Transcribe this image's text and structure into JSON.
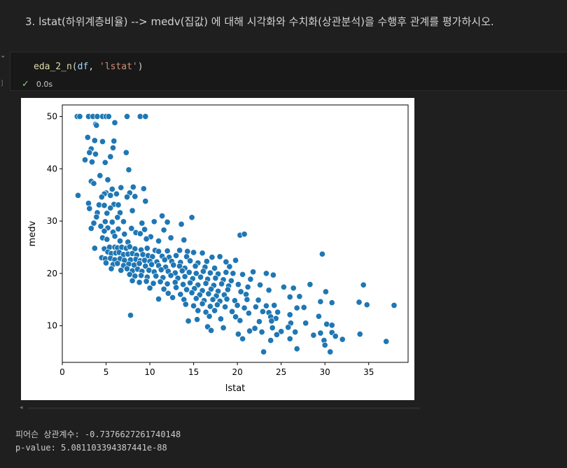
{
  "markdown": {
    "heading": "3. lstat(하위계층비율) --> medv(집값) 에 대해 시각화와 수치화(상관분석)을 수행후 관계를 평가하시오."
  },
  "code_cell": {
    "tokens": {
      "fn": "eda_2_n",
      "open": "(",
      "arg1": "df",
      "sep": ", ",
      "arg2": "'lstat'",
      "close": ")"
    },
    "exec_time": "0.0s",
    "exec_bracket": "]",
    "collapse_glyph": "⌄",
    "status_icon": "check-icon"
  },
  "output": {
    "stdout_lines": [
      "피어슨 상관계수: -0.7376627261740148",
      "p-value: 5.081103394387441e-88"
    ]
  },
  "chart_data": {
    "type": "scatter",
    "xlabel": "lstat",
    "ylabel": "medv",
    "xlim": [
      0,
      39.5
    ],
    "ylim": [
      3,
      52.2
    ],
    "xticks": [
      0,
      5,
      10,
      15,
      20,
      25,
      30,
      35
    ],
    "yticks": [
      10,
      20,
      30,
      40,
      50
    ],
    "grid": false,
    "marker_color": "#1f77b4",
    "points": [
      [
        1.7,
        50
      ],
      [
        2.0,
        50
      ],
      [
        3.0,
        50
      ],
      [
        3.5,
        50
      ],
      [
        4.0,
        50
      ],
      [
        4.6,
        50
      ],
      [
        5.0,
        50
      ],
      [
        5.3,
        50
      ],
      [
        7.4,
        50
      ],
      [
        8.9,
        50
      ],
      [
        9.5,
        50
      ],
      [
        6.0,
        48.8
      ],
      [
        3.8,
        48.5
      ],
      [
        3.9,
        48.3
      ],
      [
        2.9,
        46
      ],
      [
        3.7,
        45.4
      ],
      [
        4.6,
        45.2
      ],
      [
        5.9,
        45.3
      ],
      [
        5.8,
        44
      ],
      [
        3.3,
        43.8
      ],
      [
        3.1,
        43.1
      ],
      [
        7.3,
        43.1
      ],
      [
        3.8,
        42.8
      ],
      [
        5.5,
        42.3
      ],
      [
        2.6,
        41.7
      ],
      [
        3.4,
        41.3
      ],
      [
        4.9,
        41.2
      ],
      [
        7.6,
        39.8
      ],
      [
        1.8,
        34.9
      ],
      [
        4.3,
        38.7
      ],
      [
        5.2,
        37.9
      ],
      [
        3.3,
        37.6
      ],
      [
        3.6,
        37.2
      ],
      [
        6.7,
        36.4
      ],
      [
        8.1,
        36.5
      ],
      [
        9.3,
        36.2
      ],
      [
        5.7,
        36.1
      ],
      [
        5.0,
        35.4
      ],
      [
        4.8,
        35.2
      ],
      [
        6.2,
        35.2
      ],
      [
        5.5,
        34.9
      ],
      [
        7.7,
        35.4
      ],
      [
        7.4,
        34.6
      ],
      [
        8.3,
        34.7
      ],
      [
        4.5,
        34.6
      ],
      [
        3.0,
        33.4
      ],
      [
        5.9,
        33.2
      ],
      [
        4.2,
        33.1
      ],
      [
        6.4,
        33.1
      ],
      [
        4.8,
        33.0
      ],
      [
        3.1,
        32.4
      ],
      [
        9.5,
        33.8
      ],
      [
        5.5,
        32.5
      ],
      [
        4.0,
        31.6
      ],
      [
        5.1,
        31.5
      ],
      [
        6.6,
        31.6
      ],
      [
        8.0,
        32.0
      ],
      [
        3.9,
        30.8
      ],
      [
        6.3,
        30.7
      ],
      [
        11.4,
        31.0
      ],
      [
        14.8,
        30.7
      ],
      [
        4.9,
        29.9
      ],
      [
        5.7,
        29.8
      ],
      [
        7.0,
        29.9
      ],
      [
        9.1,
        29.6
      ],
      [
        10.5,
        29.9
      ],
      [
        3.6,
        29.6
      ],
      [
        12.0,
        29.8
      ],
      [
        13.6,
        29.4
      ],
      [
        4.4,
        29.0
      ],
      [
        5.2,
        28.7
      ],
      [
        6.4,
        28.5
      ],
      [
        7.9,
        28.6
      ],
      [
        9.4,
        28.4
      ],
      [
        3.3,
        28.6
      ],
      [
        4.8,
        28.1
      ],
      [
        11.6,
        28.3
      ],
      [
        5.8,
        27.9
      ],
      [
        8.4,
        27.8
      ],
      [
        20.3,
        27.3
      ],
      [
        20.8,
        27.5
      ],
      [
        6.0,
        27.1
      ],
      [
        7.1,
        27.5
      ],
      [
        8.9,
        27.6
      ],
      [
        10.1,
        27.0
      ],
      [
        4.6,
        26.8
      ],
      [
        12.4,
        26.8
      ],
      [
        13.9,
        26.4
      ],
      [
        5.1,
        26.5
      ],
      [
        6.6,
        26.2
      ],
      [
        9.6,
        26.6
      ],
      [
        7.5,
        26.0
      ],
      [
        11.0,
        26.2
      ],
      [
        3.7,
        24.8
      ],
      [
        4.8,
        24.7
      ],
      [
        5.4,
        25.0
      ],
      [
        6.0,
        25.0
      ],
      [
        6.3,
        24.9
      ],
      [
        6.8,
        25.0
      ],
      [
        7.3,
        24.8
      ],
      [
        7.7,
        25.1
      ],
      [
        8.3,
        24.7
      ],
      [
        9.0,
        24.5
      ],
      [
        9.7,
        24.8
      ],
      [
        10.6,
        24.4
      ],
      [
        11.0,
        24.2
      ],
      [
        12.0,
        24.3
      ],
      [
        13.4,
        24.4
      ],
      [
        14.3,
        24.2
      ],
      [
        15.0,
        24.0
      ],
      [
        16.0,
        23.9
      ],
      [
        5.2,
        24.1
      ],
      [
        5.6,
        23.8
      ],
      [
        6.1,
        23.9
      ],
      [
        6.5,
        24.0
      ],
      [
        7.0,
        23.6
      ],
      [
        7.5,
        23.7
      ],
      [
        8.0,
        23.8
      ],
      [
        8.5,
        23.5
      ],
      [
        9.2,
        23.6
      ],
      [
        9.8,
        23.4
      ],
      [
        10.3,
        23.2
      ],
      [
        11.4,
        23.3
      ],
      [
        12.2,
        23.1
      ],
      [
        13.0,
        23.4
      ],
      [
        14.2,
        23.2
      ],
      [
        17.1,
        23.1
      ],
      [
        18.0,
        23.2
      ],
      [
        29.7,
        23.7
      ],
      [
        4.5,
        23.0
      ],
      [
        4.9,
        22.8
      ],
      [
        5.5,
        22.9
      ],
      [
        6.0,
        22.6
      ],
      [
        6.6,
        22.8
      ],
      [
        7.1,
        22.5
      ],
      [
        7.8,
        22.6
      ],
      [
        8.4,
        22.7
      ],
      [
        8.9,
        22.4
      ],
      [
        9.4,
        22.5
      ],
      [
        10.0,
        22.3
      ],
      [
        10.8,
        22.2
      ],
      [
        11.7,
        22.6
      ],
      [
        12.5,
        22.3
      ],
      [
        13.5,
        22.1
      ],
      [
        14.6,
        22.4
      ],
      [
        15.5,
        22.0
      ],
      [
        16.5,
        22.3
      ],
      [
        18.7,
        22.2
      ],
      [
        5.0,
        22.0
      ],
      [
        5.8,
        21.7
      ],
      [
        6.3,
        21.9
      ],
      [
        7.0,
        21.5
      ],
      [
        7.6,
        21.8
      ],
      [
        8.2,
        21.6
      ],
      [
        8.8,
        21.9
      ],
      [
        9.5,
        21.4
      ],
      [
        10.2,
        21.7
      ],
      [
        11.0,
        21.5
      ],
      [
        11.8,
        21.2
      ],
      [
        12.7,
        21.6
      ],
      [
        13.4,
        21.4
      ],
      [
        14.0,
        21.0
      ],
      [
        15.2,
        21.4
      ],
      [
        16.3,
        21.2
      ],
      [
        17.4,
        21.0
      ],
      [
        19.1,
        21.3
      ],
      [
        19.8,
        22.5
      ],
      [
        5.6,
        20.9
      ],
      [
        6.7,
        20.6
      ],
      [
        7.4,
        20.9
      ],
      [
        8.0,
        20.5
      ],
      [
        8.6,
        20.8
      ],
      [
        9.1,
        20.4
      ],
      [
        9.9,
        20.6
      ],
      [
        10.5,
        20.3
      ],
      [
        11.3,
        20.7
      ],
      [
        12.1,
        20.4
      ],
      [
        12.9,
        20.1
      ],
      [
        13.7,
        20.5
      ],
      [
        14.5,
        20.2
      ],
      [
        15.3,
        20.0
      ],
      [
        16.1,
        20.4
      ],
      [
        16.9,
        20.1
      ],
      [
        17.8,
        19.9
      ],
      [
        18.7,
        20.2
      ],
      [
        19.5,
        20.0
      ],
      [
        20.6,
        19.8
      ],
      [
        21.8,
        20.3
      ],
      [
        23.3,
        20.0
      ],
      [
        24.1,
        19.7
      ],
      [
        7.7,
        19.8
      ],
      [
        8.3,
        19.5
      ],
      [
        9.0,
        19.6
      ],
      [
        9.7,
        19.3
      ],
      [
        10.7,
        19.5
      ],
      [
        11.5,
        19.2
      ],
      [
        12.4,
        19.6
      ],
      [
        13.2,
        19.1
      ],
      [
        14.0,
        19.4
      ],
      [
        14.9,
        19.0
      ],
      [
        15.8,
        19.3
      ],
      [
        16.6,
        18.9
      ],
      [
        17.5,
        19.1
      ],
      [
        18.4,
        18.8
      ],
      [
        19.3,
        18.6
      ],
      [
        21.5,
        18.9
      ],
      [
        8.0,
        18.6
      ],
      [
        8.8,
        18.3
      ],
      [
        9.6,
        18.5
      ],
      [
        10.4,
        18.1
      ],
      [
        11.2,
        18.4
      ],
      [
        12.0,
        18.0
      ],
      [
        12.9,
        18.3
      ],
      [
        13.8,
        17.9
      ],
      [
        14.6,
        18.2
      ],
      [
        15.5,
        17.8
      ],
      [
        16.4,
        18.1
      ],
      [
        17.3,
        17.7
      ],
      [
        18.2,
        18.0
      ],
      [
        19.0,
        17.6
      ],
      [
        20.1,
        17.9
      ],
      [
        21.2,
        17.4
      ],
      [
        22.6,
        17.8
      ],
      [
        28.3,
        17.9
      ],
      [
        34.4,
        17.8
      ],
      [
        10.0,
        17.2
      ],
      [
        11.6,
        17.0
      ],
      [
        13.0,
        17.3
      ],
      [
        14.2,
        16.9
      ],
      [
        15.1,
        17.1
      ],
      [
        16.0,
        16.7
      ],
      [
        17.0,
        17.0
      ],
      [
        17.8,
        16.6
      ],
      [
        18.9,
        16.9
      ],
      [
        20.4,
        16.5
      ],
      [
        23.6,
        16.8
      ],
      [
        25.3,
        17.4
      ],
      [
        26.4,
        17.2
      ],
      [
        12.1,
        16.2
      ],
      [
        13.5,
        16.0
      ],
      [
        14.8,
        16.3
      ],
      [
        15.7,
        15.9
      ],
      [
        16.7,
        16.1
      ],
      [
        17.6,
        15.7
      ],
      [
        18.5,
        15.9
      ],
      [
        21.0,
        16.0
      ],
      [
        27.1,
        15.6
      ],
      [
        30.1,
        16.5
      ],
      [
        11.0,
        15.1
      ],
      [
        12.6,
        15.4
      ],
      [
        13.9,
        15.0
      ],
      [
        15.3,
        15.2
      ],
      [
        16.2,
        14.8
      ],
      [
        17.2,
        15.0
      ],
      [
        18.0,
        14.7
      ],
      [
        18.8,
        15.1
      ],
      [
        19.7,
        14.8
      ],
      [
        21.1,
        15.0
      ],
      [
        22.4,
        14.9
      ],
      [
        26.0,
        15.5
      ],
      [
        29.5,
        14.6
      ],
      [
        33.9,
        14.5
      ],
      [
        34.8,
        14.0
      ],
      [
        37.9,
        13.9
      ],
      [
        14.1,
        14.1
      ],
      [
        15.0,
        13.8
      ],
      [
        16.0,
        14.2
      ],
      [
        16.9,
        13.7
      ],
      [
        17.7,
        14.0
      ],
      [
        18.6,
        13.6
      ],
      [
        20.0,
        13.9
      ],
      [
        20.8,
        13.4
      ],
      [
        22.1,
        13.6
      ],
      [
        23.3,
        13.8
      ],
      [
        24.2,
        13.9
      ],
      [
        26.8,
        13.4
      ],
      [
        27.6,
        13.5
      ],
      [
        30.8,
        14.4
      ],
      [
        15.5,
        12.9
      ],
      [
        16.4,
        12.6
      ],
      [
        17.4,
        12.9
      ],
      [
        19.4,
        12.7
      ],
      [
        21.3,
        12.4
      ],
      [
        22.9,
        12.7
      ],
      [
        23.6,
        12.5
      ],
      [
        24.6,
        12.6
      ],
      [
        26.0,
        12.1
      ],
      [
        7.8,
        12.0
      ],
      [
        16.8,
        11.8
      ],
      [
        19.8,
        11.7
      ],
      [
        23.8,
        11.7
      ],
      [
        24.4,
        11.4
      ],
      [
        29.3,
        11.8
      ],
      [
        14.4,
        10.9
      ],
      [
        15.4,
        11.2
      ],
      [
        18.1,
        11.3
      ],
      [
        20.3,
        11.0
      ],
      [
        22.5,
        10.8
      ],
      [
        23.9,
        10.9
      ],
      [
        26.1,
        10.5
      ],
      [
        27.8,
        10.5
      ],
      [
        30.2,
        10.3
      ],
      [
        30.8,
        10.1
      ],
      [
        16.6,
        9.8
      ],
      [
        18.4,
        9.6
      ],
      [
        22.0,
        9.5
      ],
      [
        24.0,
        9.6
      ],
      [
        25.8,
        9.7
      ],
      [
        17.0,
        9.1
      ],
      [
        21.4,
        9.0
      ],
      [
        22.8,
        8.8
      ],
      [
        25.0,
        8.9
      ],
      [
        26.6,
        8.8
      ],
      [
        29.5,
        8.6
      ],
      [
        30.8,
        8.7
      ],
      [
        20.1,
        8.4
      ],
      [
        24.5,
        8.3
      ],
      [
        28.7,
        8.2
      ],
      [
        31.2,
        8.0
      ],
      [
        34.0,
        8.4
      ],
      [
        20.6,
        7.5
      ],
      [
        23.8,
        7.2
      ],
      [
        26.0,
        7.5
      ],
      [
        29.9,
        7.2
      ],
      [
        32.0,
        7.4
      ],
      [
        37.0,
        7.0
      ],
      [
        30.0,
        6.3
      ],
      [
        26.8,
        5.6
      ],
      [
        23.0,
        5.0
      ],
      [
        30.6,
        5.0
      ]
    ]
  }
}
